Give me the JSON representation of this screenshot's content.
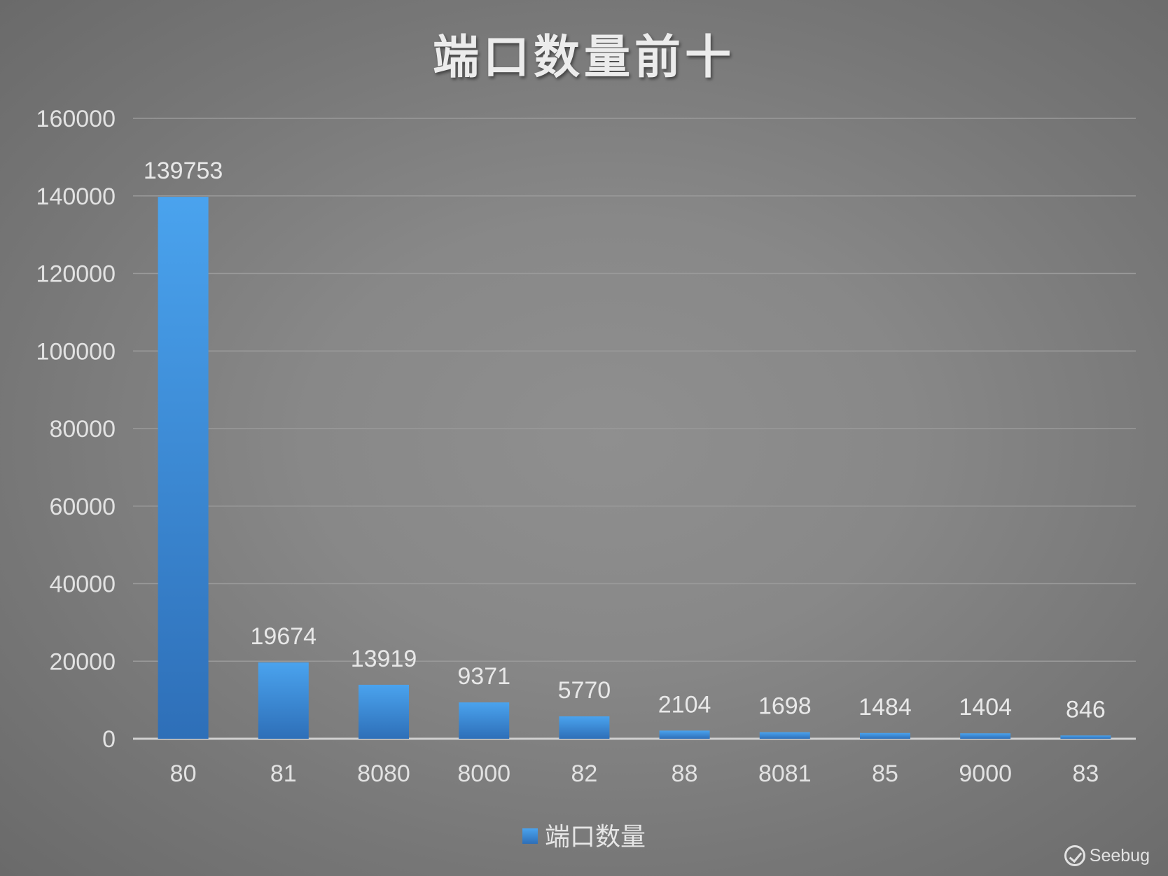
{
  "chart_data": {
    "type": "bar",
    "title": "端口数量前十",
    "xlabel": "",
    "ylabel": "",
    "categories": [
      "80",
      "81",
      "8080",
      "8000",
      "82",
      "88",
      "8081",
      "85",
      "9000",
      "83"
    ],
    "series": [
      {
        "name": "端口数量",
        "values": [
          139753,
          19674,
          13919,
          9371,
          5770,
          2104,
          1698,
          1484,
          1404,
          846
        ]
      }
    ],
    "ylim": [
      0,
      160000
    ],
    "yticks": [
      "0",
      "20000",
      "40000",
      "60000",
      "80000",
      "100000",
      "120000",
      "140000",
      "160000"
    ],
    "grid": true,
    "legend": "bottom",
    "data_labels": true,
    "colors": {
      "bar_top": "#4aa3ee",
      "bar_bottom": "#2e6fb8",
      "grid": "#9a9a9a",
      "axis": "#d0d0d0"
    }
  },
  "watermark": {
    "text": "Seebug",
    "icon": "seebug-logo-icon"
  }
}
